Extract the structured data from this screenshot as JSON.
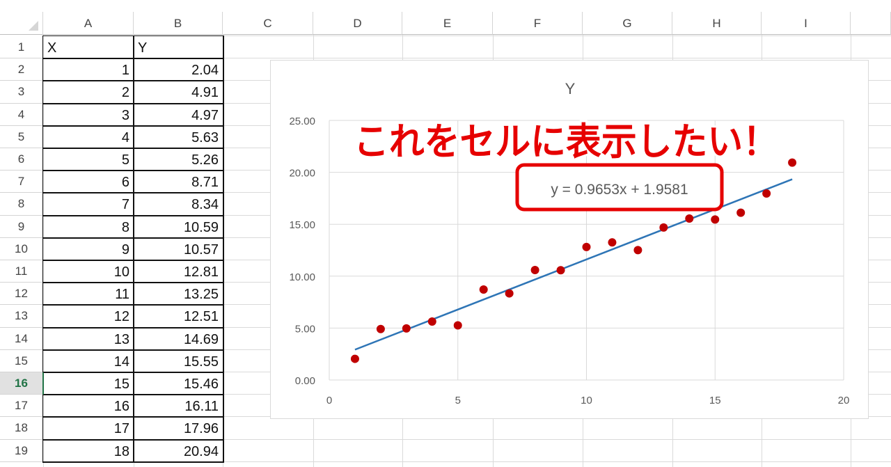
{
  "columns": [
    "A",
    "B",
    "C",
    "D",
    "E",
    "F",
    "G",
    "H",
    "I"
  ],
  "rows": [
    "1",
    "2",
    "3",
    "4",
    "5",
    "6",
    "7",
    "8",
    "9",
    "10",
    "11",
    "12",
    "13",
    "14",
    "15",
    "16",
    "17",
    "18",
    "19"
  ],
  "selected_row": "16",
  "active_cell": "A16",
  "table": {
    "headers": [
      "X",
      "Y"
    ],
    "x": [
      "1",
      "2",
      "3",
      "4",
      "5",
      "6",
      "7",
      "8",
      "9",
      "10",
      "11",
      "12",
      "13",
      "14",
      "15",
      "16",
      "17",
      "18"
    ],
    "y": [
      "2.04",
      "4.91",
      "4.97",
      "5.63",
      "5.26",
      "8.71",
      "8.34",
      "10.59",
      "10.57",
      "12.81",
      "13.25",
      "12.51",
      "14.69",
      "15.55",
      "15.46",
      "16.11",
      "17.96",
      "20.94"
    ]
  },
  "annotation": {
    "text": "これをセルに表示したい！",
    "color": "#e60000"
  },
  "chart_data": {
    "type": "scatter",
    "title": "Y",
    "x": [
      1,
      2,
      3,
      4,
      5,
      6,
      7,
      8,
      9,
      10,
      11,
      12,
      13,
      14,
      15,
      16,
      17,
      18
    ],
    "y": [
      2.04,
      4.91,
      4.97,
      5.63,
      5.26,
      8.71,
      8.34,
      10.59,
      10.57,
      12.81,
      13.25,
      12.51,
      14.69,
      15.55,
      15.46,
      16.11,
      17.96,
      20.94
    ],
    "xlim": [
      0,
      20
    ],
    "ylim": [
      0,
      25
    ],
    "x_ticks": [
      "0",
      "5",
      "10",
      "15",
      "20"
    ],
    "y_ticks": [
      "0.00",
      "5.00",
      "10.00",
      "15.00",
      "20.00",
      "25.00"
    ],
    "grid": true,
    "marker_color": "#c00000",
    "trendline": {
      "type": "linear",
      "slope": 0.9653,
      "intercept": 1.9581,
      "color": "#2e75b6",
      "label": "y = 0.9653x + 1.9581"
    }
  }
}
